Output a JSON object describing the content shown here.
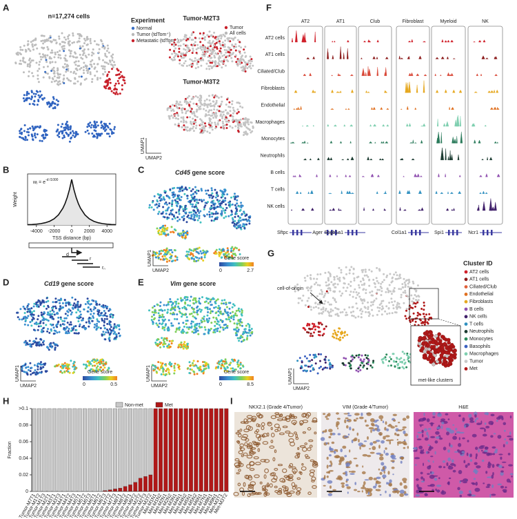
{
  "panel_labels": [
    "A",
    "B",
    "C",
    "D",
    "E",
    "F",
    "G",
    "H",
    "I"
  ],
  "umap_axes": {
    "x": "UMAP2",
    "y": "UMAP1"
  },
  "A": {
    "title": "n=17,274 cells",
    "legend_title": "Experiment",
    "legend": [
      {
        "name": "Normal",
        "color": "#3a6fc4"
      },
      {
        "name": "Tumor (tdTom⁺)",
        "color": "#b8b8b8"
      },
      {
        "name": "Metastatic (tdTom⁺)",
        "color": "#c8202a"
      }
    ],
    "subpanels": [
      {
        "title": "Tumor-M2T3",
        "legend": [
          {
            "name": "Tumor",
            "color": "#c8202a"
          },
          {
            "name": "All cells",
            "color": "#b8b8b8"
          }
        ]
      },
      {
        "title": "Tumor-M3T2"
      }
    ]
  },
  "B": {
    "formula": {
      "w": "w",
      "sub": "i",
      "eq": " = e",
      "exp": "-d /1000"
    },
    "ylabel": "Weight",
    "xlabel": "TSS distance (bp)",
    "xlim": [
      -5000,
      5000
    ],
    "ylim": [
      0,
      1
    ],
    "xticks": [
      -4000,
      -2000,
      0,
      2000,
      4000
    ],
    "x": [
      -5000,
      -4500,
      -4000,
      -3500,
      -3000,
      -2500,
      -2000,
      -1500,
      -1000,
      -750,
      -500,
      -250,
      0,
      250,
      500,
      750,
      1000,
      1500,
      2000,
      2500,
      3000,
      3500,
      4000,
      4500,
      5000
    ],
    "values": [
      0.007,
      0.011,
      0.018,
      0.03,
      0.05,
      0.082,
      0.135,
      0.223,
      0.368,
      0.472,
      0.607,
      0.779,
      1,
      0.779,
      0.607,
      0.472,
      0.368,
      0.223,
      0.135,
      0.082,
      0.05,
      0.03,
      0.018,
      0.011,
      0.007
    ],
    "schematic_labels": {
      "d": "d",
      "r": "r",
      "rn": "r",
      "n": "n"
    }
  },
  "C": {
    "gene": "Cd45",
    "title_rest": " gene score",
    "colorbar_label": "Gene score",
    "colorbar_ticks": [
      0,
      2.7
    ]
  },
  "D": {
    "gene": "Cd19",
    "title_rest": " gene score",
    "colorbar_label": "Gene score",
    "colorbar_ticks": [
      0,
      0.5
    ]
  },
  "E": {
    "gene": "Vim",
    "title_rest": " gene score",
    "colorbar_label": "Gene score",
    "colorbar_ticks": [
      0,
      8.5
    ]
  },
  "F": {
    "columns": [
      "AT2",
      "AT1",
      "Club",
      "Fibroblast",
      "Myeloid",
      "NK"
    ],
    "rows": [
      {
        "name": "AT2 cells",
        "color": "#d0202a"
      },
      {
        "name": "AT1 cells",
        "color": "#8b1a1a"
      },
      {
        "name": "Ciliated/Club",
        "color": "#d94a3a"
      },
      {
        "name": "Fibroblasts",
        "color": "#e6a820"
      },
      {
        "name": "Endothelial",
        "color": "#e07020"
      },
      {
        "name": "Macrophages",
        "color": "#7fcfb0"
      },
      {
        "name": "Monocytes",
        "color": "#2a7a5a"
      },
      {
        "name": "Neutrophils",
        "color": "#1a3a30"
      },
      {
        "name": "B cells",
        "color": "#9050b0"
      },
      {
        "name": "T cells",
        "color": "#3090c0"
      },
      {
        "name": "NK cells",
        "color": "#40206a"
      }
    ],
    "genes": [
      "Sftpc",
      "Ager",
      "Scgb1a1",
      "Col1a1",
      "Spi1",
      "Ncr1"
    ]
  },
  "G": {
    "annotation": "cell-of-origin",
    "inset_label": "met-like clusters",
    "legend_title": "Cluster ID",
    "legend": [
      {
        "name": "AT2 cells",
        "color": "#d0202a"
      },
      {
        "name": "AT1 cells",
        "color": "#8b1a1a"
      },
      {
        "name": "Ciliated/Club",
        "color": "#e0603a"
      },
      {
        "name": "Endothelial",
        "color": "#e07020"
      },
      {
        "name": "Fibroblasts",
        "color": "#e6a820"
      },
      {
        "name": "B cells",
        "color": "#9050b0"
      },
      {
        "name": "NK cells",
        "color": "#40206a"
      },
      {
        "name": "T cells",
        "color": "#3090c0"
      },
      {
        "name": "Neutrophils",
        "color": "#1a3a30"
      },
      {
        "name": "Monocytes",
        "color": "#2a8a5a"
      },
      {
        "name": "Basophils",
        "color": "#3a60c0"
      },
      {
        "name": "Macrophages",
        "color": "#7fcfb0"
      },
      {
        "name": "Tumor",
        "color": "#c8c8c8"
      },
      {
        "name": "Met",
        "color": "#b01818"
      }
    ]
  },
  "H": {
    "ylabel": "Fraction",
    "ylim": [
      0,
      0.1
    ],
    "yticks": [
      0,
      0.02,
      0.04,
      0.06,
      0.08,
      {
        "value": 0.1,
        "label": ">0.1"
      }
    ],
    "categories": [
      "Tumor-M7T1",
      "Tumor-M1T2",
      "Tumor-M1T3",
      "Tumor-M2T1",
      "Tumor-M3T1",
      "Tumor-M3T3",
      "Tumor-M4T1",
      "Tumor-M4T2",
      "Tumor-M4T3",
      "Tumor-M5T1",
      "Tumor-M5T2",
      "Tumor-M5T3",
      "Tumor-M6T1",
      "Tumor-M6T2",
      "Tumor-M6T3",
      "Tumor-M7T2",
      "Tumor-M7T3",
      "Tumor-M8T1",
      "Tumor-M8T2",
      "Tumor-M9T1",
      "Tumor-M9T2",
      "Tumor-M2T2",
      "Tumor-M2T3",
      "Tumor-M3T2",
      "Met-M1N1",
      "Met-M1N2",
      "Met-M2N1",
      "Met-M2N2",
      "Met-M3N1",
      "Met-M4N1",
      "Met-M4N2",
      "Met-M5N1",
      "Met-M5N2",
      "Met-M6N1",
      "Met-M7N1",
      "Met-M8N1",
      "Met-M9N1",
      "Met-M3T1",
      "Met-M3T2"
    ],
    "series": [
      {
        "name": "Met",
        "color": "#b01818",
        "values": [
          0,
          0,
          0,
          0,
          0,
          0,
          0,
          0,
          0,
          0,
          0,
          0,
          0,
          0,
          0.001,
          0.002,
          0.003,
          0.004,
          0.006,
          0.008,
          0.011,
          0.016,
          0.018,
          0.02,
          0.1,
          0.1,
          0.1,
          0.1,
          0.1,
          0.1,
          0.1,
          0.1,
          0.1,
          0.1,
          0.1,
          0.1,
          0.1,
          0.1,
          0.1
        ]
      },
      {
        "name": "Non-met",
        "color": "#c8c8c8",
        "values": [
          0.1,
          0.1,
          0.1,
          0.1,
          0.1,
          0.1,
          0.1,
          0.1,
          0.1,
          0.1,
          0.1,
          0.1,
          0.1,
          0.1,
          0.099,
          0.098,
          0.097,
          0.096,
          0.094,
          0.092,
          0.089,
          0.084,
          0.082,
          0.08,
          0,
          0,
          0,
          0,
          0,
          0,
          0,
          0,
          0,
          0,
          0,
          0,
          0,
          0,
          0
        ]
      }
    ]
  },
  "I": {
    "titles": [
      "NKX2.1 (Grade 4/Tumor)",
      "VIM (Grade 4/Tumor)",
      "H&E"
    ]
  }
}
